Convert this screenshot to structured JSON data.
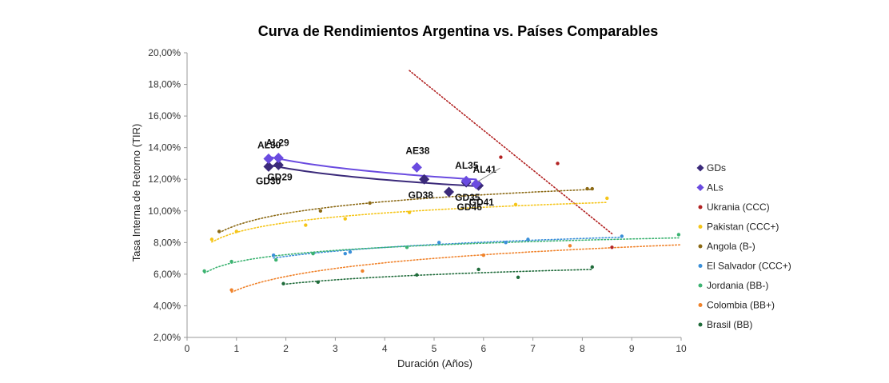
{
  "chart_data": {
    "type": "scatter",
    "title": "Curva de Rendimientos Argentina vs. Países Comparables",
    "xlabel": "Duración (Años)",
    "ylabel": "Tasa Interna de Retorno (TIR)",
    "xlim": [
      0,
      10
    ],
    "ylim": [
      2,
      20
    ],
    "x_ticks": [
      "0",
      "1",
      "2",
      "3",
      "4",
      "5",
      "6",
      "7",
      "8",
      "9",
      "10"
    ],
    "y_ticks": [
      "2,00%",
      "4,00%",
      "6,00%",
      "8,00%",
      "10,00%",
      "12,00%",
      "14,00%",
      "16,00%",
      "18,00%",
      "20,00%"
    ],
    "grid": false,
    "legend_position": "right",
    "series": [
      {
        "name": "GDs",
        "color": "#3b2a7a",
        "marker": "diamond-large",
        "trend": {
          "type": "log",
          "style": "solid"
        },
        "points": [
          {
            "x": 1.65,
            "y": 12.8,
            "label": "GD30"
          },
          {
            "x": 1.85,
            "y": 12.9,
            "label": "GD29"
          },
          {
            "x": 4.8,
            "y": 12.0,
            "label": "GD38"
          },
          {
            "x": 5.3,
            "y": 11.2,
            "label": "GD46"
          },
          {
            "x": 5.65,
            "y": 11.8,
            "label": "GD35"
          },
          {
            "x": 5.9,
            "y": 11.6,
            "label": "GD41"
          }
        ]
      },
      {
        "name": "ALs",
        "color": "#6a4be0",
        "marker": "diamond-large",
        "trend": {
          "type": "log",
          "style": "solid"
        },
        "points": [
          {
            "x": 1.65,
            "y": 13.3,
            "label": "AL30"
          },
          {
            "x": 1.85,
            "y": 13.35,
            "label": "AL29"
          },
          {
            "x": 4.65,
            "y": 12.75,
            "label": "AE38"
          },
          {
            "x": 5.65,
            "y": 11.9,
            "label": "AL35"
          },
          {
            "x": 5.85,
            "y": 11.7,
            "label": "AL41"
          }
        ]
      },
      {
        "name": "Ukrania (CCC)",
        "color": "#b22222",
        "marker": "dot",
        "trend": {
          "type": "linear",
          "style": "dotted",
          "x_range": [
            4.5,
            8.6
          ]
        },
        "points": [
          {
            "x": 6.35,
            "y": 13.4
          },
          {
            "x": 7.5,
            "y": 13.0
          },
          {
            "x": 8.6,
            "y": 7.7
          }
        ]
      },
      {
        "name": "Pakistan (CCC+)",
        "color": "#f5c518",
        "marker": "dot",
        "trend": {
          "type": "log",
          "style": "dotted",
          "x_range": [
            0.5,
            8.5
          ]
        },
        "points": [
          {
            "x": 0.5,
            "y": 8.2
          },
          {
            "x": 1.0,
            "y": 8.7
          },
          {
            "x": 2.4,
            "y": 9.1
          },
          {
            "x": 3.2,
            "y": 9.5
          },
          {
            "x": 4.5,
            "y": 9.9
          },
          {
            "x": 6.65,
            "y": 10.4
          },
          {
            "x": 8.5,
            "y": 10.8
          }
        ]
      },
      {
        "name": "Angola (B-)",
        "color": "#8b6914",
        "marker": "dot",
        "trend": {
          "type": "log",
          "style": "dotted",
          "x_range": [
            0.65,
            8.2
          ]
        },
        "points": [
          {
            "x": 0.65,
            "y": 8.7
          },
          {
            "x": 2.7,
            "y": 10.0
          },
          {
            "x": 3.7,
            "y": 10.5
          },
          {
            "x": 8.1,
            "y": 11.4
          },
          {
            "x": 8.2,
            "y": 11.4
          }
        ]
      },
      {
        "name": "El Salvador (CCC+)",
        "color": "#3a8fd9",
        "marker": "dot",
        "trend": {
          "type": "log",
          "style": "dotted",
          "x_range": [
            1.75,
            8.8
          ]
        },
        "points": [
          {
            "x": 1.75,
            "y": 7.2
          },
          {
            "x": 3.2,
            "y": 7.3
          },
          {
            "x": 3.3,
            "y": 7.4
          },
          {
            "x": 5.1,
            "y": 8.0
          },
          {
            "x": 6.45,
            "y": 8.0
          },
          {
            "x": 6.9,
            "y": 8.2
          },
          {
            "x": 8.8,
            "y": 8.4
          }
        ]
      },
      {
        "name": "Jordania (BB-)",
        "color": "#3cb371",
        "marker": "dot",
        "trend": {
          "type": "log",
          "style": "dotted",
          "x_range": [
            0.35,
            9.95
          ]
        },
        "points": [
          {
            "x": 0.35,
            "y": 6.2
          },
          {
            "x": 0.9,
            "y": 6.8
          },
          {
            "x": 1.8,
            "y": 6.9
          },
          {
            "x": 2.55,
            "y": 7.3
          },
          {
            "x": 4.45,
            "y": 7.7
          },
          {
            "x": 9.95,
            "y": 8.5
          }
        ]
      },
      {
        "name": "Colombia (BB+)",
        "color": "#f0822a",
        "marker": "dot",
        "trend": {
          "type": "log",
          "style": "dotted",
          "x_range": [
            0.9,
            10
          ]
        },
        "points": [
          {
            "x": 0.9,
            "y": 5.0
          },
          {
            "x": 3.55,
            "y": 6.2
          },
          {
            "x": 6.0,
            "y": 7.2
          },
          {
            "x": 7.75,
            "y": 7.8
          }
        ]
      },
      {
        "name": "Brasil (BB)",
        "color": "#1f6b3a",
        "marker": "dot",
        "trend": {
          "type": "log",
          "style": "dotted",
          "x_range": [
            1.95,
            8.2
          ]
        },
        "points": [
          {
            "x": 1.95,
            "y": 5.4
          },
          {
            "x": 2.65,
            "y": 5.5
          },
          {
            "x": 4.65,
            "y": 5.95
          },
          {
            "x": 5.9,
            "y": 6.3
          },
          {
            "x": 6.7,
            "y": 5.8
          },
          {
            "x": 8.2,
            "y": 6.45
          }
        ]
      }
    ]
  }
}
